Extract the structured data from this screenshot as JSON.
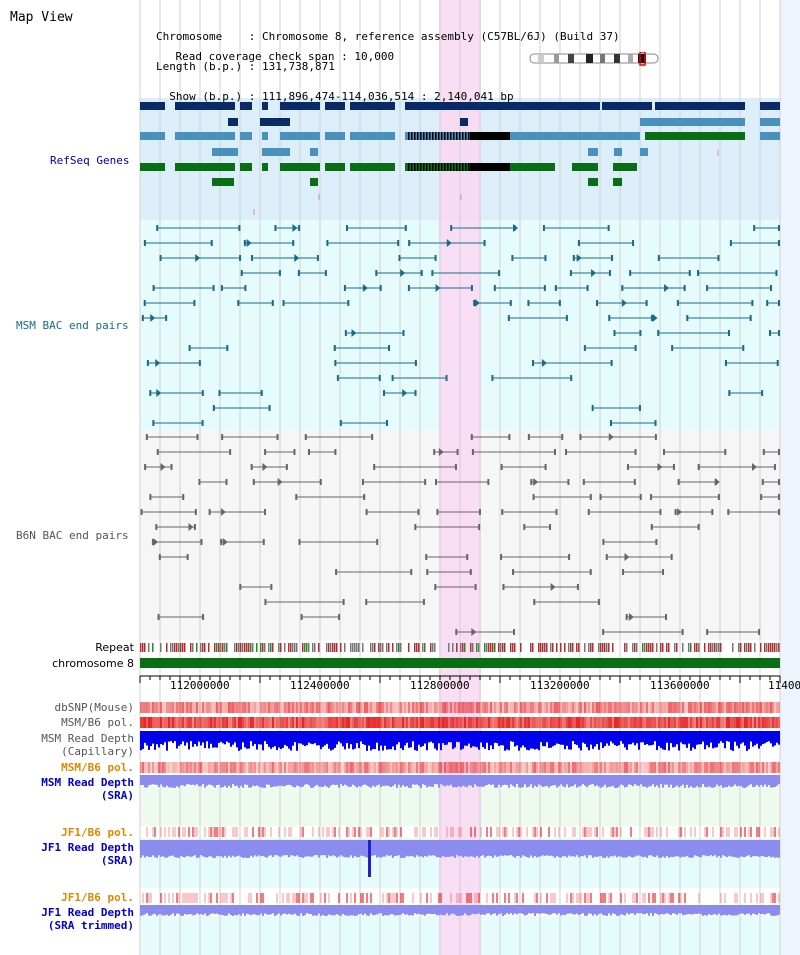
{
  "map_title": "Map View",
  "info": {
    "chromosome_label": "Chromosome",
    "chromosome_value": "Chromosome 8, reference assembly (C57BL/6J) (Build 37)",
    "length_label": "Length (b.p.)",
    "length_value": "131,738,871",
    "show_label": "Show (b.p.)",
    "show_value": "111,896,474-114,036,514 : 2,140,041 bp",
    "coverage_label": "Read coverage check span",
    "coverage_value": "10,000"
  },
  "tracks": {
    "refseq": "RefSeq Genes",
    "msm_bac": "MSM BAC end pairs",
    "b6n_bac": "B6N BAC end pairs",
    "repeat": "Repeat",
    "chromosome": "chromosome 8",
    "dbsnp": "dbSNP(Mouse)",
    "msm_b6_pol_1": "MSM/B6 pol.",
    "msm_read_depth_cap_1": "MSM Read Depth",
    "msm_read_depth_cap_2": "(Capillary)",
    "msm_b6_pol_2": "MSM/B6 pol.",
    "msm_read_depth_sra_1": "MSM Read Depth",
    "msm_read_depth_sra_2": "(SRA)",
    "jf1_b6_pol_1": "JF1/B6 pol.",
    "jf1_read_depth_sra_1": "JF1 Read Depth",
    "jf1_read_depth_sra_2": "(SRA)",
    "jf1_b6_pol_2": "JF1/B6 pol.",
    "jf1_read_depth_trim_1": "JF1 Read Depth",
    "jf1_read_depth_trim_2": "(SRA trimmed)"
  },
  "axis": {
    "ticks": [
      "112000000",
      "112400000",
      "112800000",
      "113200000",
      "113600000",
      "11400"
    ]
  },
  "colors": {
    "highlight": "#f9d8f2",
    "refseq_bg": "#dbeef9",
    "msm_bg": "#e6fbfb",
    "b6n_bg": "#f5f5f5",
    "refseq_navy": "#0a2a66",
    "refseq_steel": "#4a90bc",
    "refseq_green": "#0a6e14",
    "msm_line": "#1a6a8a",
    "b6n_line": "#666666",
    "chromosome_bar": "#0a6e14",
    "depth_blue": "#0000ee",
    "sra_purple": "#8c8cee"
  }
}
